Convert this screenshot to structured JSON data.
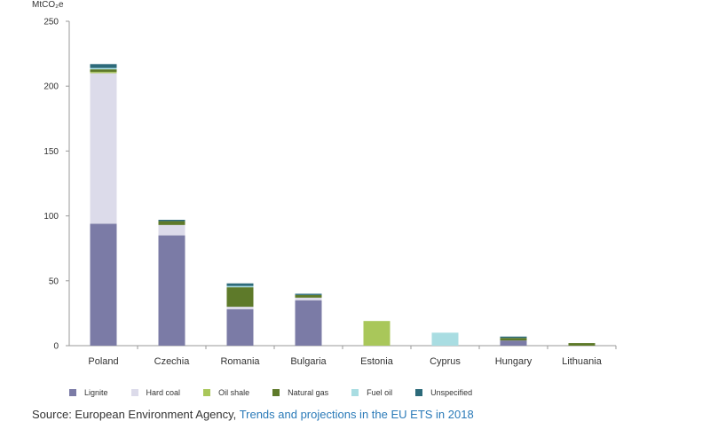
{
  "chart_data": {
    "type": "bar",
    "stacked": true,
    "ylabel": "MtCO₂e",
    "ylim": [
      0,
      250
    ],
    "yticks": [
      0,
      50,
      100,
      150,
      200,
      250
    ],
    "categories": [
      "Poland",
      "Czechia",
      "Romania",
      "Bulgaria",
      "Estonia",
      "Cyprus",
      "Hungary",
      "Lithuania"
    ],
    "series": [
      {
        "name": "Lignite",
        "color": "#7b7ba6",
        "values": [
          94,
          85,
          28,
          35,
          0,
          0,
          4,
          0
        ]
      },
      {
        "name": "Hard coal",
        "color": "#dcdbea",
        "values": [
          116,
          8,
          2,
          2,
          0,
          0,
          0,
          0
        ]
      },
      {
        "name": "Oil shale",
        "color": "#a9c75a",
        "values": [
          1,
          0,
          0,
          0,
          19,
          0,
          0,
          0
        ]
      },
      {
        "name": "Natural gas",
        "color": "#5e7a2a",
        "values": [
          2,
          3,
          15,
          2,
          0,
          0,
          2,
          2
        ]
      },
      {
        "name": "Fuel oil",
        "color": "#a9dde2",
        "values": [
          1,
          0,
          1,
          0,
          0,
          10,
          0,
          0
        ]
      },
      {
        "name": "Unspecified",
        "color": "#2c6a7a",
        "values": [
          3,
          1,
          2,
          1,
          0,
          0,
          1,
          0
        ]
      }
    ],
    "grid": false,
    "legend_position": "bottom"
  },
  "source": {
    "prefix": "Source: European Environment Agency,",
    "link_text": "Trends and projections in the EU ETS in 2018"
  }
}
